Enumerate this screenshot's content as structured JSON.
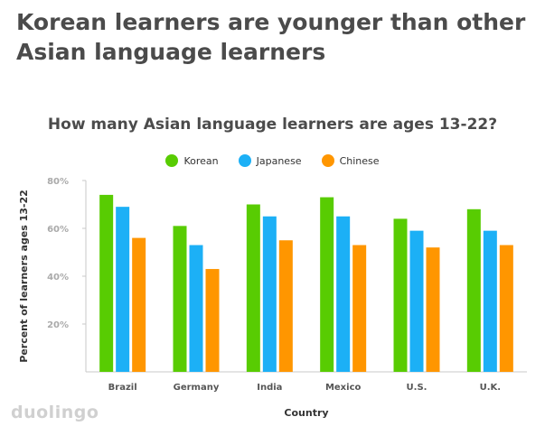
{
  "headline": "Korean learners are younger than other Asian language learners",
  "logo_text": "duolingo",
  "chart_data": {
    "type": "bar",
    "title": "How many Asian language learners are ages 13-22?",
    "xlabel": "Country",
    "ylabel": "Percent of learners ages 13-22",
    "categories": [
      "Brazil",
      "Germany",
      "India",
      "Mexico",
      "U.S.",
      "U.K."
    ],
    "series": [
      {
        "name": "Korean",
        "color": "#58cc02",
        "values": [
          74,
          61,
          70,
          73,
          64,
          68
        ]
      },
      {
        "name": "Japanese",
        "color": "#1cb0f6",
        "values": [
          69,
          53,
          65,
          65,
          59,
          59
        ]
      },
      {
        "name": "Chinese",
        "color": "#ff9600",
        "values": [
          56,
          43,
          55,
          53,
          52,
          53
        ]
      }
    ],
    "yticks": [
      "20%",
      "40%",
      "60%",
      "80%"
    ],
    "ylim": [
      0,
      80
    ],
    "grid": false,
    "legend_position": "top-center"
  }
}
